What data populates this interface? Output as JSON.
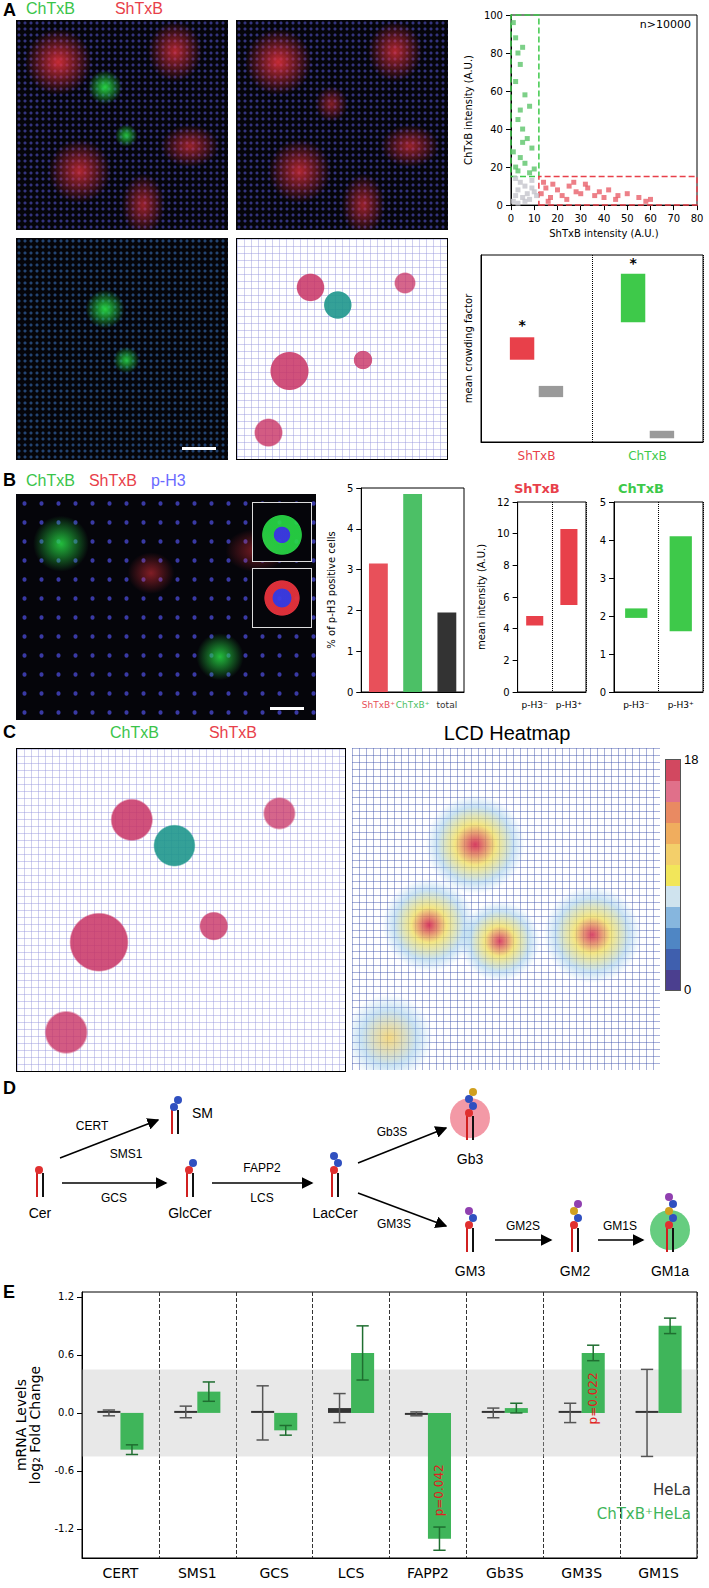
{
  "figure": {
    "panel_labels": [
      "A",
      "B",
      "C",
      "D",
      "E"
    ],
    "A": {
      "image_labels": [
        {
          "text": "ChTxB",
          "color": "#39c44a"
        },
        {
          "text": "ShTxB",
          "color": "#e8404a"
        }
      ]
    },
    "B": {
      "image_labels": [
        {
          "text": "ChTxB",
          "color": "#39c44a"
        },
        {
          "text": "ShTxB",
          "color": "#e8404a"
        },
        {
          "text": "p-H3",
          "color": "#6a6aff"
        }
      ]
    },
    "C": {
      "map_labels": [
        {
          "text": "ChTxB",
          "color": "#39c44a"
        },
        {
          "text": "ShTxB",
          "color": "#e8404a"
        }
      ],
      "heatmap_title": "LCD Heatmap",
      "colorbar": {
        "range": [
          0,
          18
        ],
        "ticks": [
          0,
          18
        ],
        "colors": [
          "#4b3f8f",
          "#3f5fae",
          "#4f86c4",
          "#86b6de",
          "#cfe3ee",
          "#f2e65a",
          "#f3cf6a",
          "#f0ad5e",
          "#e98a62",
          "#e0708a",
          "#d24860"
        ]
      }
    },
    "D": {
      "nodes": [
        "Cer",
        "SM",
        "GlcCer",
        "LacCer",
        "Gb3",
        "GM3",
        "GM2",
        "GM1a"
      ],
      "reactions": [
        {
          "from": "Cer",
          "to": "SM",
          "enzymes": [
            "CERT",
            "SMS1"
          ]
        },
        {
          "from": "Cer",
          "to": "GlcCer",
          "enzymes": [
            "GCS"
          ]
        },
        {
          "from": "GlcCer",
          "to": "LacCer",
          "enzymes": [
            "FAPP2",
            "LCS"
          ]
        },
        {
          "from": "LacCer",
          "to": "Gb3",
          "enzymes": [
            "Gb3S"
          ]
        },
        {
          "from": "LacCer",
          "to": "GM3",
          "enzymes": [
            "GM3S"
          ]
        },
        {
          "from": "GM3",
          "to": "GM2",
          "enzymes": [
            "GM2S"
          ]
        },
        {
          "from": "GM2",
          "to": "GM1a",
          "enzymes": [
            "GM1S"
          ]
        }
      ]
    }
  },
  "chart_data": [
    {
      "type": "scatter",
      "x_label": "ShTxB intensity (A.U.)",
      "y_label": "ChTxB intensity (A.U.)",
      "annotation": "n>10000",
      "xlim": [
        0,
        80
      ],
      "xticks": [
        0,
        10,
        20,
        30,
        40,
        50,
        60,
        70,
        80
      ],
      "ylim": [
        0,
        100
      ],
      "yticks": [
        0,
        20,
        40,
        60,
        80,
        100
      ],
      "series": [
        {
          "color": "#5cc46a",
          "marker": "square",
          "x": [
            1,
            2,
            3,
            4,
            5,
            6,
            8,
            2,
            3,
            5,
            7,
            9,
            1,
            4,
            6,
            2,
            3,
            8,
            5,
            10,
            4
          ],
          "values": [
            96,
            88,
            80,
            74,
            83,
            58,
            52,
            65,
            45,
            40,
            35,
            30,
            28,
            25,
            22,
            20,
            18,
            17,
            33,
            19,
            50
          ]
        },
        {
          "color": "#e8606a",
          "marker": "square",
          "x": [
            13,
            15,
            17,
            20,
            22,
            25,
            28,
            30,
            33,
            36,
            40,
            42,
            45,
            50,
            55,
            58,
            14,
            18,
            24,
            32,
            38,
            46,
            60,
            16,
            27
          ],
          "values": [
            6,
            9,
            4,
            8,
            5,
            10,
            7,
            6,
            9,
            5,
            4,
            8,
            3,
            6,
            4,
            2,
            12,
            11,
            3,
            11,
            7,
            5,
            3,
            2,
            12
          ]
        },
        {
          "color": "#c4c4cc",
          "marker": "square",
          "x": [
            1,
            2,
            3,
            4,
            5,
            6,
            7,
            8,
            9,
            10,
            3,
            6,
            9,
            2,
            11
          ],
          "values": [
            2,
            5,
            8,
            12,
            4,
            10,
            6,
            3,
            13,
            7,
            1,
            2,
            9,
            14,
            5
          ]
        }
      ],
      "gates": [
        {
          "x": [
            0,
            12
          ],
          "y": [
            15,
            100
          ],
          "color": "#3ec94a"
        },
        {
          "x": [
            12,
            80
          ],
          "y": [
            0,
            15
          ],
          "color": "#e8404a"
        }
      ]
    },
    {
      "type": "range",
      "y_label": "mean crowding factor",
      "tick_labels": false,
      "categories": [
        "ShTxB",
        "ChTxB"
      ],
      "ylim": [
        0,
        5
      ],
      "series": [
        {
          "colors": [
            "#e8404a",
            "#3ec94a"
          ],
          "low": [
            2.2,
            3.2
          ],
          "high": [
            2.8,
            4.5
          ]
        },
        {
          "color": "#9a9a9a",
          "low": [
            1.2,
            0.1
          ],
          "high": [
            1.5,
            0.3
          ]
        }
      ],
      "annotations": [
        {
          "text": "*",
          "category": "ShTxB",
          "value": 2.95
        },
        {
          "text": "*",
          "category": "ChTxB",
          "value": 4.6
        }
      ]
    },
    {
      "type": "bar",
      "y_label": "% of p-H3 positive cells",
      "categories": [
        "ShTxB⁺",
        "ChTxB⁺",
        "total"
      ],
      "values": [
        3.15,
        4.85,
        1.95
      ],
      "colors": [
        "#e8505a",
        "#4cc066",
        "#333333"
      ],
      "ylim": [
        0,
        5
      ],
      "yticks": [
        0,
        1,
        2,
        3,
        4,
        5
      ]
    },
    {
      "type": "range",
      "title": "ShTxB",
      "color": "#e8404a",
      "y_label": "mean intensity (A.U.)",
      "categories": [
        "p-H3⁻",
        "p-H3⁺"
      ],
      "ylim": [
        0,
        12
      ],
      "yticks": [
        0,
        2,
        4,
        6,
        8,
        10,
        12
      ],
      "series": [
        {
          "low": [
            4.2,
            5.5
          ],
          "high": [
            4.8,
            10.3
          ]
        }
      ]
    },
    {
      "type": "range",
      "title": "ChTxB",
      "color": "#3ec94a",
      "categories": [
        "p-H3⁻",
        "p-H3⁺"
      ],
      "ylim": [
        0,
        5
      ],
      "yticks": [
        0,
        1,
        2,
        3,
        4,
        5
      ],
      "series": [
        {
          "low": [
            1.95,
            1.6
          ],
          "high": [
            2.2,
            4.1
          ]
        }
      ]
    },
    {
      "type": "bar",
      "y_label": "mRNA Levels\nlog₂ Fold Change",
      "categories": [
        "CERT",
        "SMS1",
        "GCS",
        "LCS",
        "FAPP2",
        "Gb3S",
        "GM3S",
        "GM1S"
      ],
      "series": [
        {
          "name": "HeLa",
          "color": "#333333",
          "values": [
            0,
            0.01,
            0,
            0.05,
            -0.01,
            0,
            0,
            0
          ],
          "errors": [
            0.03,
            0.06,
            0.28,
            0.15,
            0.02,
            0.05,
            0.1,
            0.45
          ]
        },
        {
          "name": "ChTxB⁺HeLa",
          "color": "#3fb55a",
          "values": [
            -0.38,
            0.22,
            -0.18,
            0.62,
            -1.3,
            0.05,
            0.62,
            0.9
          ],
          "errors": [
            0.05,
            0.1,
            0.05,
            0.28,
            0.12,
            0.05,
            0.08,
            0.08
          ]
        }
      ],
      "ylim": [
        -1.5,
        1.25
      ],
      "yticks": [
        -1.2,
        -0.6,
        {
          "value": 0,
          "label": "0.0"
        },
        0.6,
        1.2
      ],
      "shaded_band": [
        -0.45,
        0.45
      ],
      "annotations": [
        {
          "text": "p=0.042",
          "category": "FAPP2",
          "series": "ChTxB⁺HeLa",
          "value": -0.8
        },
        {
          "text": "p=0.022",
          "category": "GM3S",
          "series": "ChTxB⁺HeLa",
          "value": 0.15
        }
      ]
    }
  ]
}
